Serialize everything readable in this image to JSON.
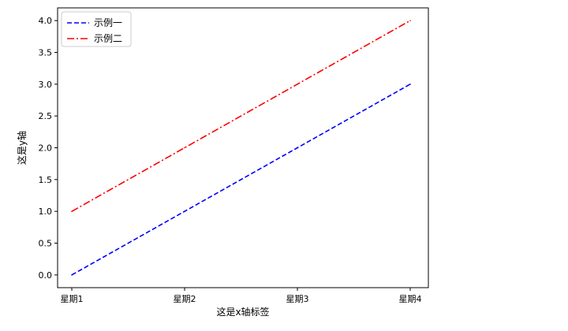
{
  "chart_data": {
    "type": "line",
    "categories": [
      "星期1",
      "星期2",
      "星期3",
      "星期4"
    ],
    "series": [
      {
        "name": "示例一",
        "values": [
          0,
          1,
          2,
          3
        ],
        "color": "#0000ff",
        "line_style": "dashed"
      },
      {
        "name": "示例二",
        "values": [
          1,
          2,
          3,
          4
        ],
        "color": "#ff0000",
        "line_style": "dashdot"
      }
    ],
    "xlabel": "这是x轴标签",
    "ylabel": "这是y轴",
    "ylim": [
      -0.2,
      4.2
    ],
    "y_ticks": [
      "0.0",
      "0.5",
      "1.0",
      "1.5",
      "2.0",
      "2.5",
      "3.0",
      "3.5",
      "4.0"
    ],
    "grid": false,
    "legend_position": "upper-left"
  }
}
